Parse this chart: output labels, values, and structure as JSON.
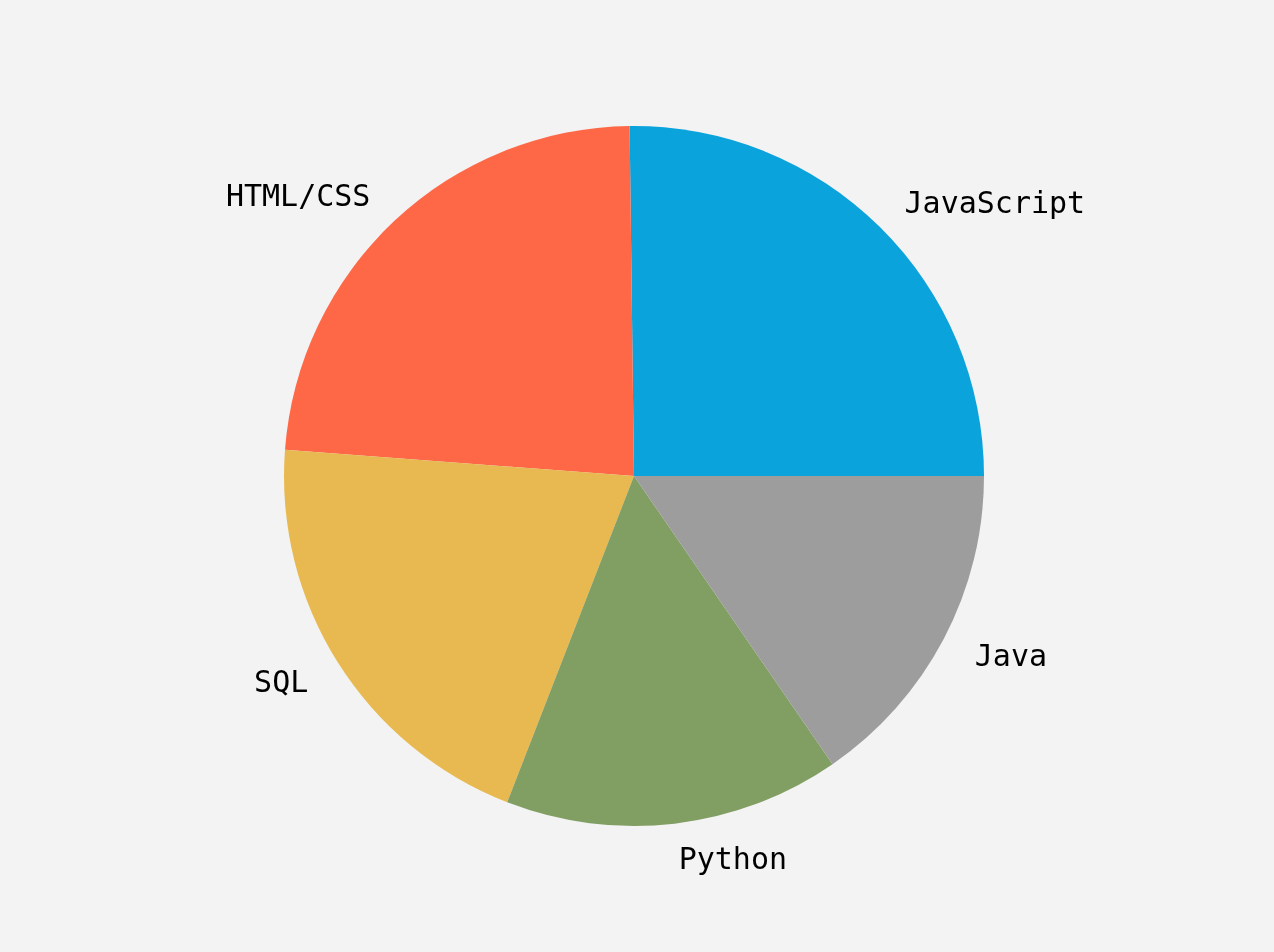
{
  "chart_data": {
    "type": "pie",
    "categories": [
      "JavaScript",
      "HTML/CSS",
      "SQL",
      "Python",
      "Java"
    ],
    "values": [
      25.2,
      23.6,
      20.3,
      15.5,
      15.4
    ],
    "colors": [
      "#0ba3dc",
      "#fe6847",
      "#e8b951",
      "#819e63",
      "#9d9d9d"
    ]
  }
}
